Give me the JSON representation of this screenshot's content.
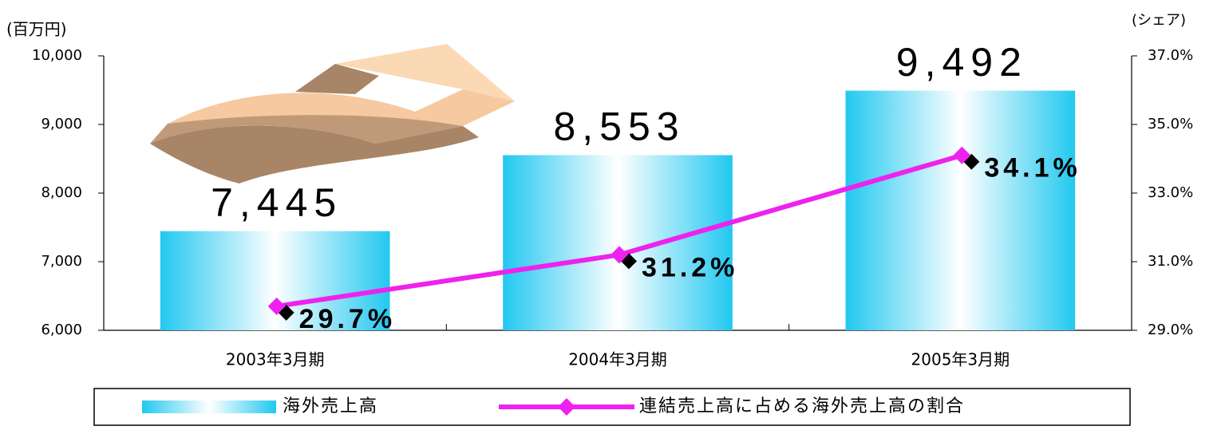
{
  "chart_data": {
    "type": "bar",
    "y_label": "(百万円)",
    "y2_label": "(シェア)",
    "categories": [
      "2003年3月期",
      "2004年3月期",
      "2005年3月期"
    ],
    "series": [
      {
        "name": "海外売上高",
        "type": "bar",
        "color": "#22c8f0",
        "values": [
          7445,
          8553,
          9492
        ],
        "value_labels": [
          "7,445",
          "8,553",
          "9,492"
        ]
      },
      {
        "name": "連結売上高に占める海外売上高の割合",
        "type": "line",
        "axis": "y2",
        "color": "#ee22ee",
        "values": [
          29.7,
          31.2,
          34.1
        ],
        "value_labels": [
          "29.7%",
          "31.2%",
          "34.1%"
        ]
      }
    ],
    "ylim": [
      6000,
      10000
    ],
    "yticks": [
      {
        "value": 6000,
        "label": "6,000"
      },
      {
        "value": 7000,
        "label": "7,000"
      },
      {
        "value": 8000,
        "label": "8,000"
      },
      {
        "value": 9000,
        "label": "9,000"
      },
      {
        "value": 10000,
        "label": "10,000"
      }
    ],
    "y2lim": [
      29,
      37
    ],
    "y2ticks": [
      {
        "value": 29,
        "label": "29.0%"
      },
      {
        "value": 31,
        "label": "31.0%"
      },
      {
        "value": 33,
        "label": "33.0%"
      },
      {
        "value": 35,
        "label": "35.0%"
      },
      {
        "value": 37,
        "label": "37.0%"
      }
    ],
    "grid": false,
    "legend": "bottom"
  }
}
